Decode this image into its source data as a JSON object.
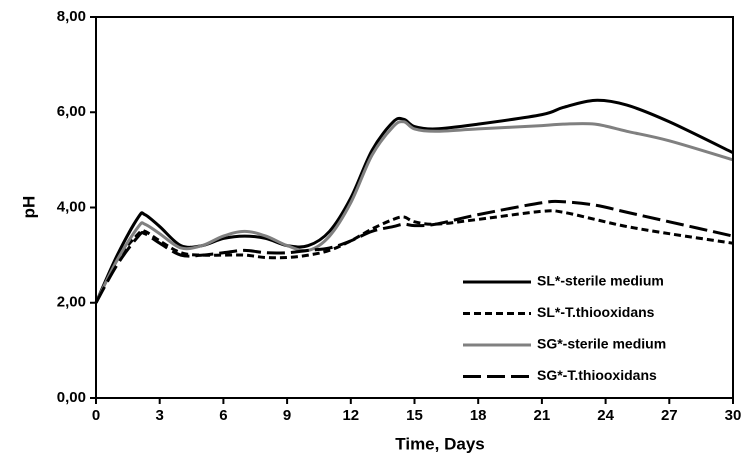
{
  "chart_data": {
    "type": "line",
    "x_label": "Time, Days",
    "y_label": "pH",
    "xlim": [
      0,
      30
    ],
    "xticks": [
      0,
      3,
      6,
      9,
      12,
      15,
      18,
      21,
      24,
      27,
      30
    ],
    "ylim": [
      0,
      8
    ],
    "yticks": [
      {
        "value": 0,
        "label": "0,00"
      },
      {
        "value": 2,
        "label": "2,00"
      },
      {
        "value": 4,
        "label": "4,00"
      },
      {
        "value": 6,
        "label": "6,00"
      },
      {
        "value": 8,
        "label": "8,00"
      }
    ],
    "x": [
      0,
      1,
      2,
      2.3,
      3,
      4,
      5,
      6,
      7,
      8,
      9,
      10,
      11,
      12,
      13,
      14,
      14.5,
      15,
      16,
      18,
      21,
      22,
      23.5,
      25,
      27,
      30
    ],
    "legend": "lower right",
    "series": [
      {
        "name": "SL*-sterile medium",
        "color": "#000000",
        "dash": "solid",
        "values": [
          2.0,
          3.0,
          3.8,
          3.85,
          3.6,
          3.2,
          3.2,
          3.35,
          3.4,
          3.35,
          3.2,
          3.2,
          3.5,
          4.2,
          5.2,
          5.8,
          5.85,
          5.7,
          5.65,
          5.75,
          5.95,
          6.1,
          6.25,
          6.15,
          5.8,
          5.15
        ]
      },
      {
        "name": "SL*-T.thiooxidans",
        "color": "#000000",
        "dash": "short",
        "values": [
          2.0,
          2.9,
          3.45,
          3.5,
          3.3,
          3.05,
          3.0,
          3.0,
          3.0,
          2.95,
          2.95,
          3.0,
          3.1,
          3.3,
          3.55,
          3.75,
          3.8,
          3.7,
          3.65,
          3.75,
          3.92,
          3.9,
          3.75,
          3.6,
          3.45,
          3.25
        ]
      },
      {
        "name": "SG*-sterile medium",
        "color": "#808080",
        "dash": "solid",
        "values": [
          2.0,
          2.9,
          3.6,
          3.65,
          3.45,
          3.15,
          3.2,
          3.4,
          3.5,
          3.4,
          3.2,
          3.1,
          3.4,
          4.1,
          5.1,
          5.7,
          5.8,
          5.65,
          5.6,
          5.65,
          5.72,
          5.75,
          5.75,
          5.6,
          5.4,
          5.0
        ]
      },
      {
        "name": "SG*-T.thiooxidans",
        "color": "#000000",
        "dash": "long",
        "values": [
          2.0,
          2.8,
          3.4,
          3.45,
          3.25,
          3.0,
          3.0,
          3.05,
          3.1,
          3.05,
          3.05,
          3.1,
          3.15,
          3.3,
          3.5,
          3.6,
          3.65,
          3.62,
          3.65,
          3.85,
          4.1,
          4.12,
          4.05,
          3.9,
          3.7,
          3.4
        ]
      }
    ]
  }
}
